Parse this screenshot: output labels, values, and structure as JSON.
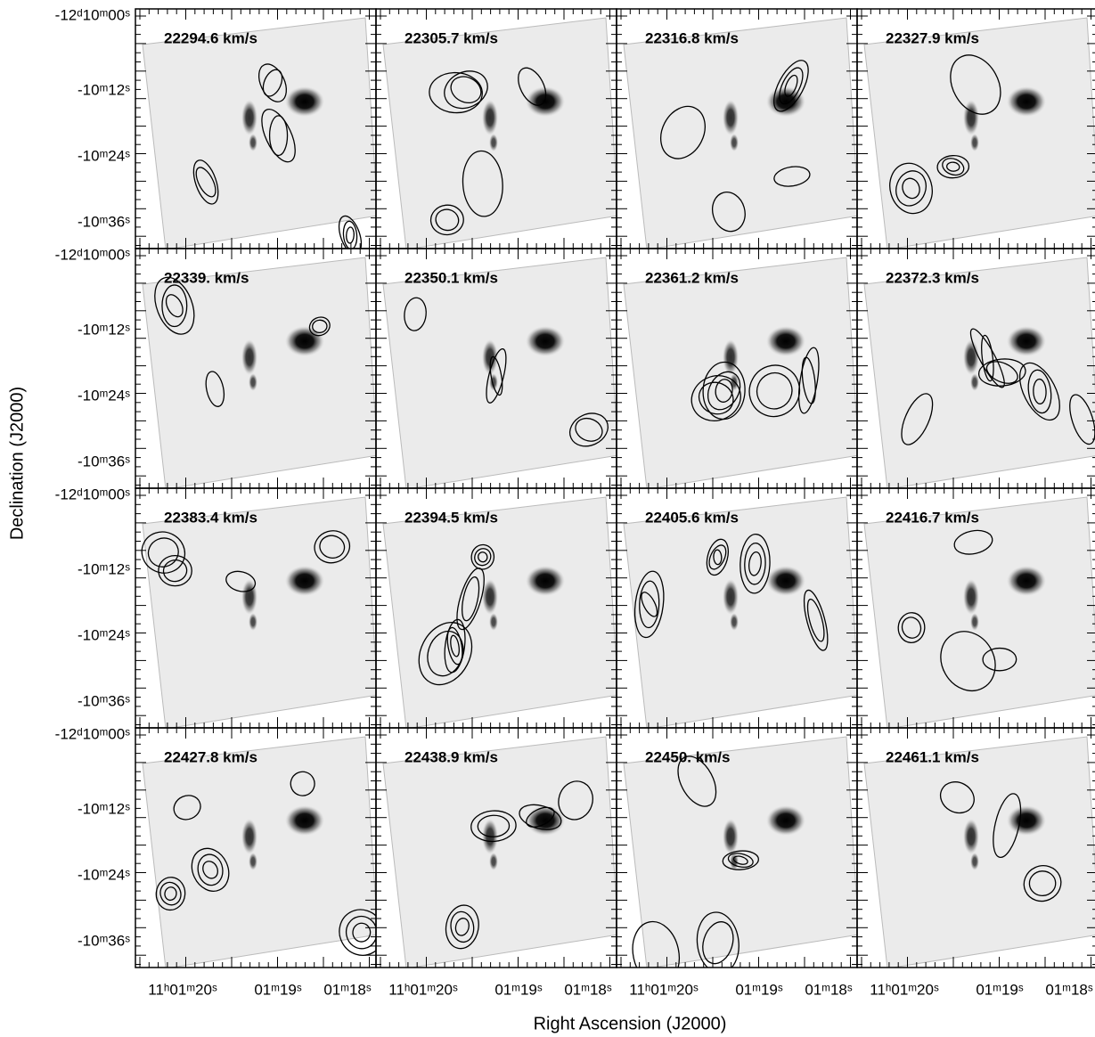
{
  "panels": [
    {
      "label": "22294.6 km/s"
    },
    {
      "label": "22305.7 km/s"
    },
    {
      "label": "22316.8 km/s"
    },
    {
      "label": "22327.9 km/s"
    },
    {
      "label": "22339. km/s"
    },
    {
      "label": "22350.1 km/s"
    },
    {
      "label": "22361.2 km/s"
    },
    {
      "label": "22372.3 km/s"
    },
    {
      "label": "22383.4 km/s"
    },
    {
      "label": "22394.5 km/s"
    },
    {
      "label": "22405.6 km/s"
    },
    {
      "label": "22416.7 km/s"
    },
    {
      "label": "22427.8 km/s"
    },
    {
      "label": "22438.9 km/s"
    },
    {
      "label": "22450. km/s"
    },
    {
      "label": "22461.1 km/s"
    }
  ],
  "y_axis": {
    "title": "Declination (J2000)",
    "ticks": [
      "-12ᵈ10ᵐ00ˢ",
      "-10ᵐ12ˢ",
      "-10ᵐ24ˢ",
      "-10ᵐ36ˢ"
    ]
  },
  "x_axis": {
    "title": "Right Ascension (J2000)",
    "ticks": [
      "11ʰ01ᵐ20ˢ",
      "01ᵐ19ˢ",
      "01ᵐ18ˢ"
    ]
  }
}
